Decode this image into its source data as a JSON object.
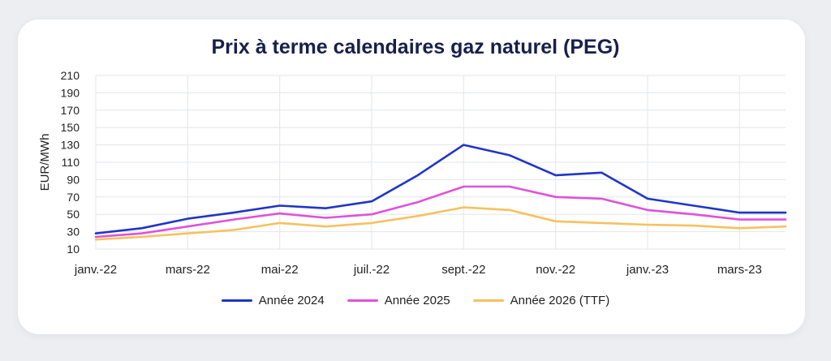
{
  "chart_data": {
    "type": "line",
    "title": "Prix à terme calendaires gaz naturel (PEG)",
    "ylabel": "EUR/MWh",
    "xlabel": "",
    "ylim": [
      10,
      210
    ],
    "yticks": [
      10,
      30,
      50,
      70,
      90,
      110,
      130,
      150,
      170,
      190,
      210
    ],
    "xticks": [
      "janv.-22",
      "mars-22",
      "mai-22",
      "juil.-22",
      "sept.-22",
      "nov.-22",
      "janv.-23",
      "mars-23"
    ],
    "x": [
      "janv.-22",
      "févr.-22",
      "mars-22",
      "avr.-22",
      "mai-22",
      "juin-22",
      "juil.-22",
      "août-22",
      "sept.-22",
      "oct.-22",
      "nov.-22",
      "déc.-22",
      "janv.-23",
      "févr.-23",
      "mars-23",
      "avr.-23"
    ],
    "grid": true,
    "legend_position": "bottom",
    "series": [
      {
        "name": "Année 2024",
        "color": "#1f35c9",
        "values": [
          28,
          34,
          45,
          52,
          60,
          57,
          65,
          95,
          130,
          118,
          95,
          98,
          68,
          60,
          52,
          52
        ]
      },
      {
        "name": "Année 2025",
        "color": "#de52dc",
        "values": [
          24,
          28,
          36,
          44,
          51,
          46,
          50,
          64,
          82,
          82,
          70,
          68,
          55,
          50,
          44,
          44
        ]
      },
      {
        "name": "Année 2026 (TTF)",
        "color": "#f6c15e",
        "values": [
          21,
          24,
          28,
          32,
          40,
          36,
          40,
          48,
          58,
          55,
          42,
          40,
          38,
          37,
          34,
          36
        ]
      }
    ]
  }
}
